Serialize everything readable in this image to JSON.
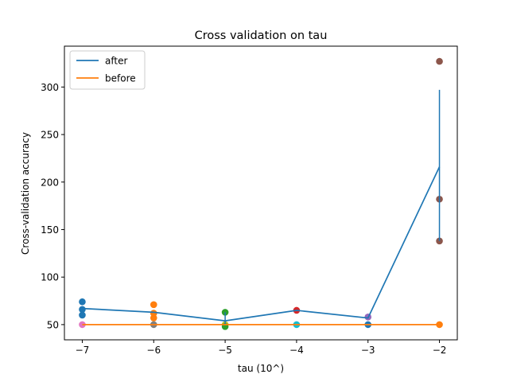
{
  "chart_data": {
    "type": "scatter",
    "title": "Cross validation on tau",
    "xlabel": "tau (10^)",
    "ylabel": "Cross-validation accuracy",
    "xlim": [
      -7.25,
      -1.75
    ],
    "ylim": [
      34,
      343
    ],
    "xticks": [
      -7,
      -6,
      -5,
      -4,
      -3,
      -2
    ],
    "xtick_labels": [
      "−7",
      "−6",
      "−5",
      "−4",
      "−3",
      "−2"
    ],
    "yticks": [
      50,
      100,
      150,
      200,
      250,
      300
    ],
    "ytick_labels": [
      "50",
      "100",
      "150",
      "200",
      "250",
      "300"
    ],
    "grid": false,
    "legend": {
      "placement": "top-left",
      "entries": [
        "after",
        "before"
      ]
    },
    "colors": {
      "after": "#1f77b4",
      "before": "#ff7f0e",
      "cycle": [
        "#1f77b4",
        "#ff7f0e",
        "#2ca02c",
        "#d62728",
        "#9467bd",
        "#8c564b",
        "#e377c2",
        "#7f7f7f",
        "#bcbd22",
        "#17becf"
      ]
    },
    "series": [
      {
        "name": "after",
        "x": [
          -7,
          -6,
          -5,
          -4,
          -3,
          -2
        ],
        "y": [
          67,
          63,
          54,
          65,
          57,
          216
        ],
        "error_low": [
          67,
          63,
          50,
          65,
          57,
          138
        ],
        "error_high": [
          67,
          63,
          63,
          65,
          57,
          297
        ]
      },
      {
        "name": "before",
        "x": [
          -7,
          -6,
          -5,
          -4,
          -3,
          -2
        ],
        "y": [
          50,
          50,
          50,
          50,
          50,
          50
        ]
      }
    ],
    "scatter_points": [
      {
        "x": -7,
        "y": 74,
        "color": "#1f77b4"
      },
      {
        "x": -7,
        "y": 66,
        "color": "#1f77b4"
      },
      {
        "x": -7,
        "y": 60,
        "color": "#1f77b4"
      },
      {
        "x": -7,
        "y": 50,
        "color": "#e377c2"
      },
      {
        "x": -6,
        "y": 71,
        "color": "#ff7f0e"
      },
      {
        "x": -6,
        "y": 62,
        "color": "#ff7f0e"
      },
      {
        "x": -6,
        "y": 57,
        "color": "#ff7f0e"
      },
      {
        "x": -6,
        "y": 50,
        "color": "#7f7f7f"
      },
      {
        "x": -5,
        "y": 63,
        "color": "#2ca02c"
      },
      {
        "x": -5,
        "y": 50,
        "color": "#bcbd22"
      },
      {
        "x": -5,
        "y": 48,
        "color": "#2ca02c"
      },
      {
        "x": -4,
        "y": 65,
        "color": "#d62728"
      },
      {
        "x": -4,
        "y": 50,
        "color": "#17becf"
      },
      {
        "x": -3,
        "y": 58,
        "color": "#9467bd"
      },
      {
        "x": -3,
        "y": 50,
        "color": "#1f77b4"
      },
      {
        "x": -2,
        "y": 327,
        "color": "#8c564b"
      },
      {
        "x": -2,
        "y": 182,
        "color": "#8c564b"
      },
      {
        "x": -2,
        "y": 138,
        "color": "#8c564b"
      },
      {
        "x": -2,
        "y": 50,
        "color": "#ff7f0e"
      }
    ]
  }
}
